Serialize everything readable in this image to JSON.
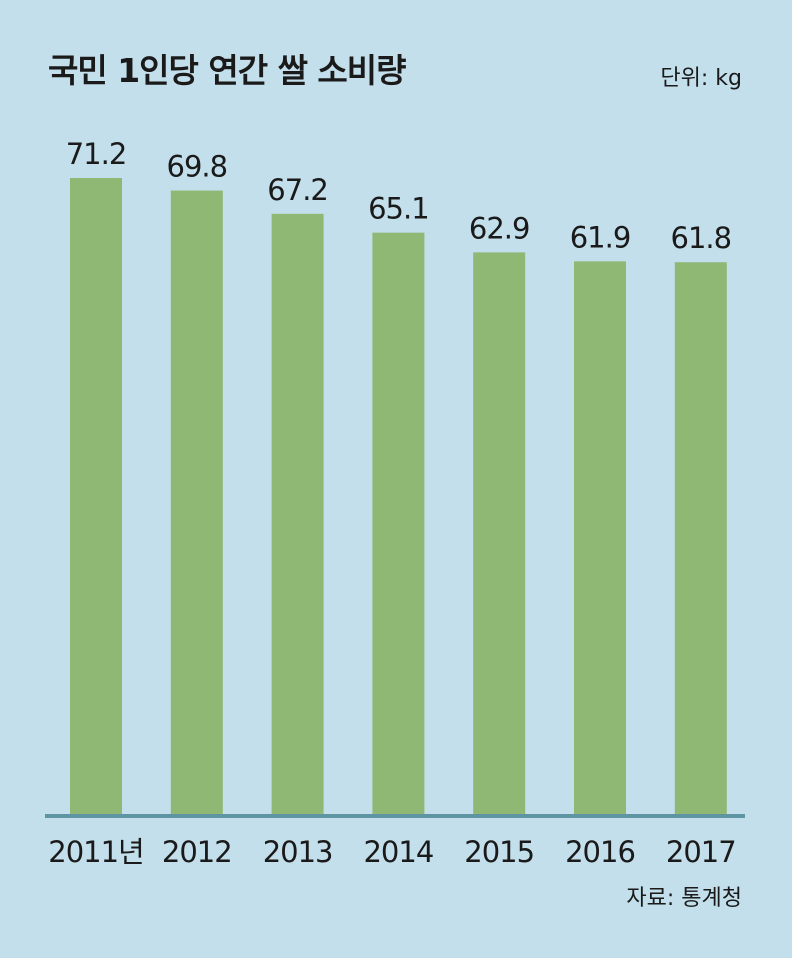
{
  "chart_data": {
    "type": "bar",
    "title": "국민 1인당 연간 쌀 소비량",
    "unit_label": "단위: kg",
    "source": "자료: 통계청",
    "categories": [
      "2011년",
      "2012",
      "2013",
      "2014",
      "2015",
      "2016",
      "2017"
    ],
    "values": [
      71.2,
      69.8,
      67.2,
      65.1,
      62.9,
      61.9,
      61.8
    ],
    "value_labels": [
      "71.2",
      "69.8",
      "67.2",
      "65.1",
      "62.9",
      "61.9",
      "61.8"
    ],
    "xlabel": "",
    "ylabel": "",
    "ylim": [
      0,
      71.2
    ],
    "grid": false,
    "legend": "none",
    "bar_color": "#8fb874",
    "axis_color": "#5f95a3",
    "background_color": "#c3dfeb"
  }
}
